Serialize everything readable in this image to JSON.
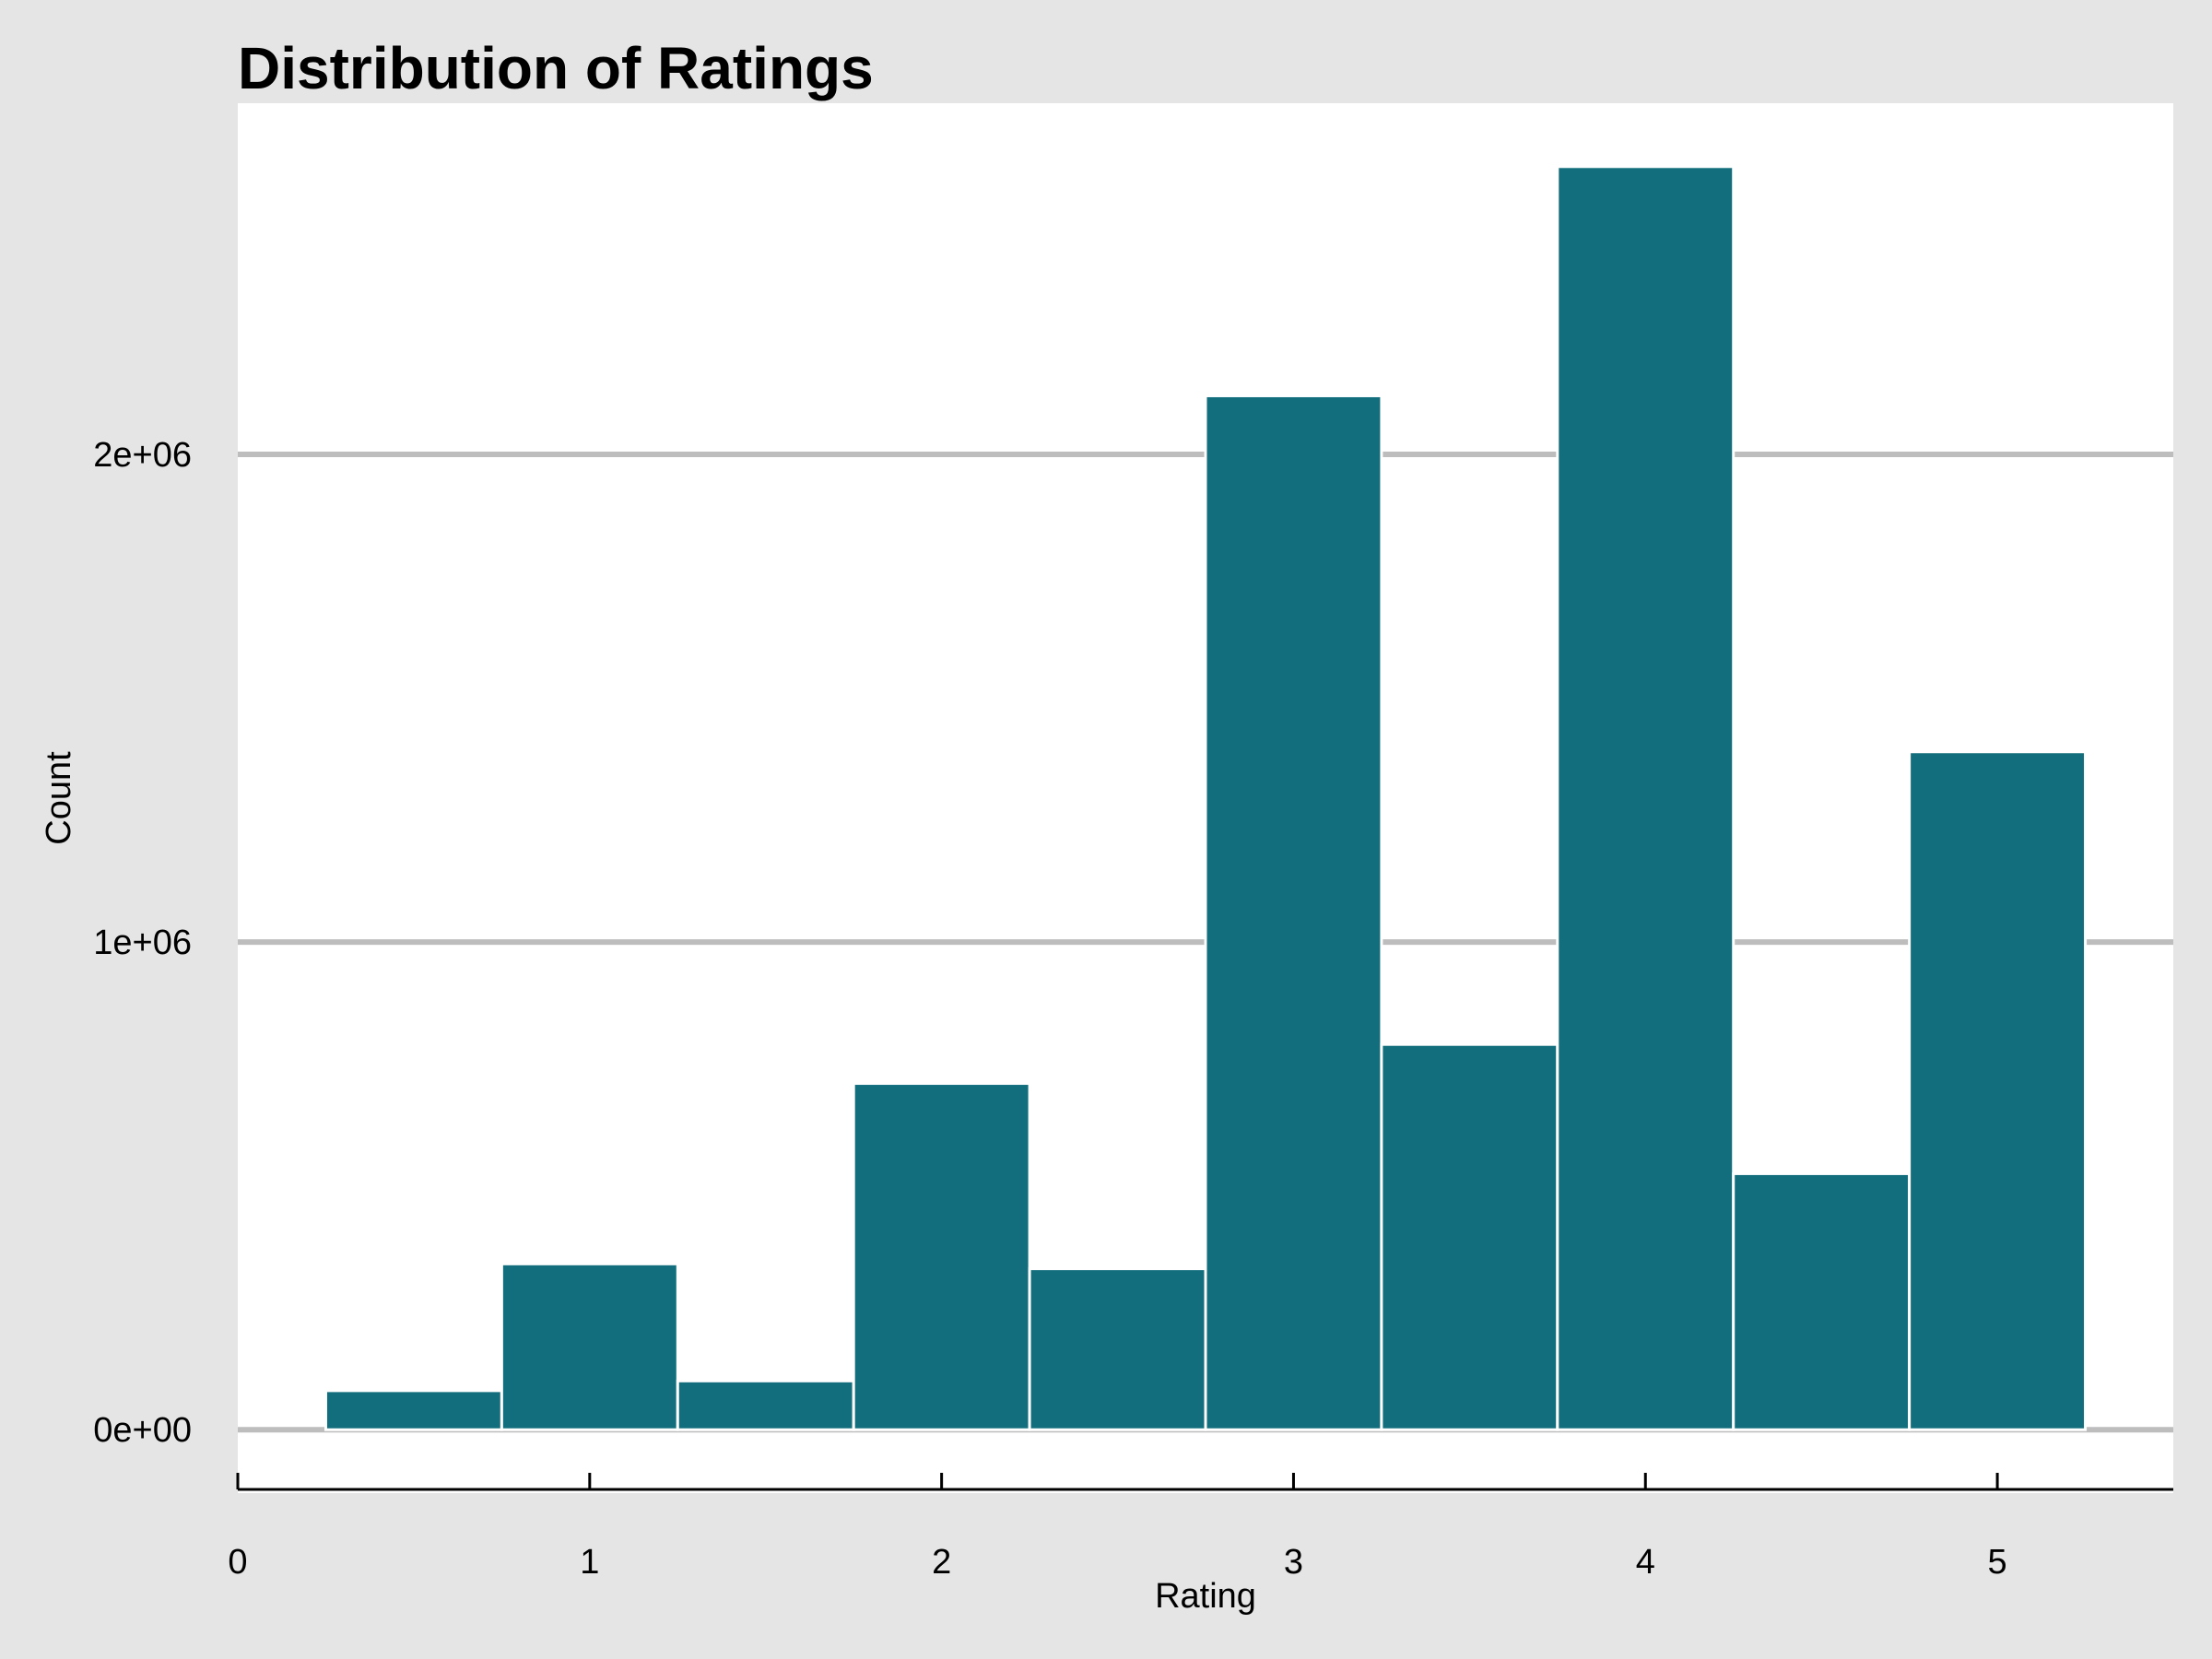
{
  "chart_data": {
    "type": "histogram",
    "title": "Distribution of Ratings",
    "xlabel": "Rating",
    "ylabel": "Count",
    "bin_width": 0.5,
    "bins": [
      {
        "x0": 0.25,
        "x1": 0.75,
        "count": 80000
      },
      {
        "x0": 0.75,
        "x1": 1.25,
        "count": 340000
      },
      {
        "x0": 1.25,
        "x1": 1.75,
        "count": 100000
      },
      {
        "x0": 1.75,
        "x1": 2.25,
        "count": 710000
      },
      {
        "x0": 2.25,
        "x1": 2.75,
        "count": 330000
      },
      {
        "x0": 2.75,
        "x1": 3.25,
        "count": 2120000
      },
      {
        "x0": 3.25,
        "x1": 3.75,
        "count": 790000
      },
      {
        "x0": 3.75,
        "x1": 4.25,
        "count": 2590000
      },
      {
        "x0": 4.25,
        "x1": 4.75,
        "count": 525000
      },
      {
        "x0": 4.75,
        "x1": 5.25,
        "count": 1390000
      }
    ],
    "xlim": [
      0,
      5.5
    ],
    "ylim": [
      -130000,
      2720000
    ],
    "x_ticks": [
      {
        "value": 0,
        "label": "0"
      },
      {
        "value": 1,
        "label": "1"
      },
      {
        "value": 2,
        "label": "2"
      },
      {
        "value": 3,
        "label": "3"
      },
      {
        "value": 4,
        "label": "4"
      },
      {
        "value": 5,
        "label": "5"
      }
    ],
    "y_ticks": [
      {
        "value": 0,
        "label": "0e+00"
      },
      {
        "value": 1000000,
        "label": "1e+06"
      },
      {
        "value": 2000000,
        "label": "2e+06"
      }
    ],
    "grid": "horizontal-major",
    "legend": "none",
    "colors": {
      "bar_fill": "#126e7d",
      "bar_edge": "#ffffff",
      "panel_background": "#ffffff",
      "plot_background": "#e5e5e5",
      "grid": "#bdbdbd",
      "axis_line": "#000000"
    }
  }
}
